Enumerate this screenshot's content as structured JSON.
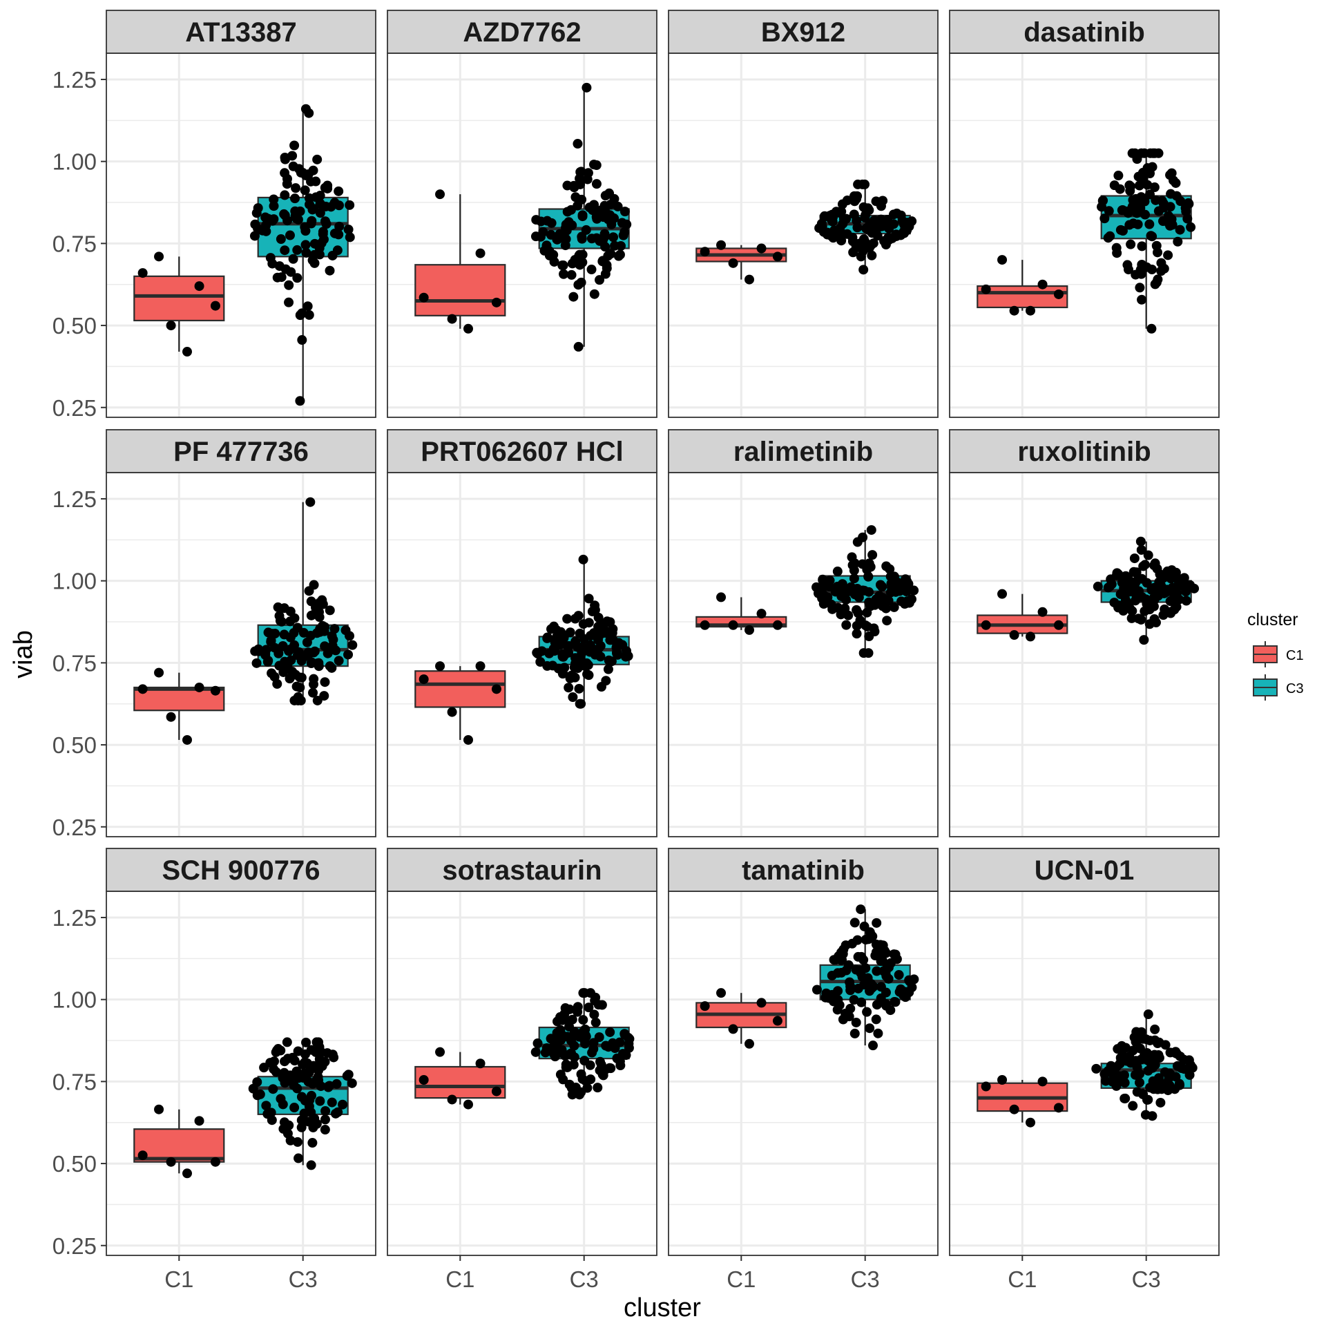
{
  "chart_data": {
    "type": "boxplot",
    "title": "",
    "xlabel": "cluster",
    "ylabel": "viab",
    "ylim": [
      0.22,
      1.33
    ],
    "yticks": [
      "0.25",
      "0.50",
      "0.75",
      "1.00",
      "1.25"
    ],
    "ytick_values": [
      0.25,
      0.5,
      0.75,
      1.0,
      1.25
    ],
    "categories": [
      "C1",
      "C3"
    ],
    "grid": true,
    "legend": {
      "title": "cluster",
      "position": "right",
      "entries": [
        {
          "label": "C1",
          "color": "#F8766D"
        },
        {
          "label": "C3",
          "color": "#00BFC4"
        }
      ]
    },
    "colors": {
      "C1": "#F25F5C",
      "C3": "#17B3B8",
      "point": "#000000",
      "strip_bg": "#D3D3D3",
      "grid": "#EBEBEB"
    },
    "facets": [
      {
        "name": "AT13387",
        "C1": {
          "q1": 0.515,
          "median": 0.59,
          "q3": 0.65,
          "whisker_low": 0.42,
          "whisker_high": 0.71,
          "points": [
            0.71,
            0.62,
            0.66,
            0.56,
            0.5,
            0.42
          ]
        },
        "C3": {
          "q1": 0.71,
          "median": 0.81,
          "q3": 0.89,
          "whisker_low": 0.27,
          "whisker_high": 1.16,
          "n": 110
        }
      },
      {
        "name": "AZD7762",
        "C1": {
          "q1": 0.53,
          "median": 0.575,
          "q3": 0.685,
          "whisker_low": 0.49,
          "whisker_high": 0.9,
          "points": [
            0.9,
            0.72,
            0.585,
            0.57,
            0.52,
            0.49
          ]
        },
        "C3": {
          "q1": 0.735,
          "median": 0.795,
          "q3": 0.855,
          "whisker_low": 0.435,
          "whisker_high": 1.225,
          "n": 110
        }
      },
      {
        "name": "BX912",
        "C1": {
          "q1": 0.695,
          "median": 0.715,
          "q3": 0.735,
          "whisker_low": 0.64,
          "whisker_high": 0.745,
          "points": [
            0.745,
            0.735,
            0.725,
            0.71,
            0.69,
            0.64
          ]
        },
        "C3": {
          "q1": 0.78,
          "median": 0.81,
          "q3": 0.835,
          "whisker_low": 0.67,
          "whisker_high": 0.93,
          "n": 110
        }
      },
      {
        "name": "dasatinib",
        "C1": {
          "q1": 0.555,
          "median": 0.6,
          "q3": 0.62,
          "whisker_low": 0.545,
          "whisker_high": 0.7,
          "points": [
            0.7,
            0.625,
            0.61,
            0.595,
            0.545,
            0.545
          ]
        },
        "C3": {
          "q1": 0.765,
          "median": 0.835,
          "q3": 0.895,
          "whisker_low": 0.49,
          "whisker_high": 1.025,
          "n": 110
        }
      },
      {
        "name": "PF 477736",
        "C1": {
          "q1": 0.605,
          "median": 0.67,
          "q3": 0.675,
          "whisker_low": 0.515,
          "whisker_high": 0.72,
          "points": [
            0.72,
            0.675,
            0.67,
            0.665,
            0.585,
            0.515
          ]
        },
        "C3": {
          "q1": 0.74,
          "median": 0.79,
          "q3": 0.865,
          "whisker_low": 0.635,
          "whisker_high": 1.24,
          "n": 110
        }
      },
      {
        "name": "PRT062607 HCl",
        "C1": {
          "q1": 0.615,
          "median": 0.685,
          "q3": 0.725,
          "whisker_low": 0.515,
          "whisker_high": 0.74,
          "points": [
            0.74,
            0.74,
            0.7,
            0.67,
            0.6,
            0.515
          ]
        },
        "C3": {
          "q1": 0.745,
          "median": 0.79,
          "q3": 0.83,
          "whisker_low": 0.625,
          "whisker_high": 1.065,
          "n": 110
        }
      },
      {
        "name": "ralimetinib",
        "C1": {
          "q1": 0.86,
          "median": 0.865,
          "q3": 0.89,
          "whisker_low": 0.85,
          "whisker_high": 0.95,
          "points": [
            0.95,
            0.9,
            0.865,
            0.865,
            0.865,
            0.85
          ]
        },
        "C3": {
          "q1": 0.935,
          "median": 0.965,
          "q3": 1.015,
          "whisker_low": 0.78,
          "whisker_high": 1.155,
          "n": 110
        }
      },
      {
        "name": "ruxolitinib",
        "C1": {
          "q1": 0.84,
          "median": 0.865,
          "q3": 0.895,
          "whisker_low": 0.83,
          "whisker_high": 0.96,
          "points": [
            0.96,
            0.905,
            0.865,
            0.865,
            0.835,
            0.83
          ]
        },
        "C3": {
          "q1": 0.935,
          "median": 0.97,
          "q3": 1.0,
          "whisker_low": 0.82,
          "whisker_high": 1.12,
          "n": 110
        }
      },
      {
        "name": "SCH 900776",
        "C1": {
          "q1": 0.505,
          "median": 0.515,
          "q3": 0.605,
          "whisker_low": 0.47,
          "whisker_high": 0.665,
          "points": [
            0.665,
            0.63,
            0.525,
            0.505,
            0.505,
            0.47
          ]
        },
        "C3": {
          "q1": 0.65,
          "median": 0.73,
          "q3": 0.765,
          "whisker_low": 0.495,
          "whisker_high": 0.87,
          "n": 110
        }
      },
      {
        "name": "sotrastaurin",
        "C1": {
          "q1": 0.7,
          "median": 0.735,
          "q3": 0.795,
          "whisker_low": 0.68,
          "whisker_high": 0.84,
          "points": [
            0.84,
            0.805,
            0.755,
            0.72,
            0.695,
            0.68
          ]
        },
        "C3": {
          "q1": 0.82,
          "median": 0.86,
          "q3": 0.915,
          "whisker_low": 0.71,
          "whisker_high": 1.02,
          "n": 110
        }
      },
      {
        "name": "tamatinib",
        "C1": {
          "q1": 0.915,
          "median": 0.955,
          "q3": 0.99,
          "whisker_low": 0.865,
          "whisker_high": 1.02,
          "points": [
            1.02,
            0.99,
            0.98,
            0.935,
            0.91,
            0.865
          ]
        },
        "C3": {
          "q1": 1.0,
          "median": 1.055,
          "q3": 1.105,
          "whisker_low": 0.86,
          "whisker_high": 1.275,
          "n": 110
        }
      },
      {
        "name": "UCN-01",
        "C1": {
          "q1": 0.66,
          "median": 0.7,
          "q3": 0.745,
          "whisker_low": 0.625,
          "whisker_high": 0.755,
          "points": [
            0.755,
            0.75,
            0.735,
            0.67,
            0.665,
            0.625
          ]
        },
        "C3": {
          "q1": 0.73,
          "median": 0.785,
          "q3": 0.805,
          "whisker_low": 0.645,
          "whisker_high": 0.955,
          "n": 110
        }
      }
    ]
  }
}
